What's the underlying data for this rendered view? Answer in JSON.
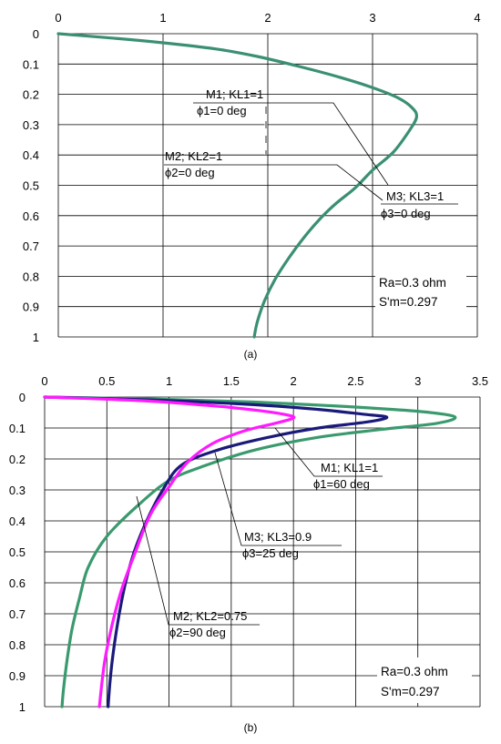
{
  "panels": [
    {
      "caption": "(a)",
      "info_lines": [
        "Ra=0.3 ohm",
        "S'm=0.297"
      ],
      "annotations": [
        {
          "line1": "M1;  KL1=1",
          "line2": "ϕ1=0 deg"
        },
        {
          "line1": "M2; KL2=1",
          "line2": "ϕ2=0 deg"
        },
        {
          "line1": "M3; KL3=1",
          "line2": "ϕ3=0 deg"
        }
      ]
    },
    {
      "caption": "(b)",
      "info_lines": [
        "Ra=0.3 ohm",
        "S'm=0.297"
      ],
      "annotations": [
        {
          "line1": "M1;  KL1=1",
          "line2": "ϕ1=60 deg"
        },
        {
          "line1": "M3; KL3=0.9",
          "line2": "ϕ3=25 deg"
        },
        {
          "line1": "M2; KL2=0.75",
          "line2": "ϕ2=90 deg"
        }
      ]
    }
  ],
  "chart_data": [
    {
      "type": "line",
      "title": "",
      "xlabel": "",
      "ylabel": "",
      "x_axis_position": "top",
      "y_axis_inverted": true,
      "xlim": [
        0,
        4
      ],
      "ylim": [
        0,
        1
      ],
      "x_ticks": [
        "0",
        "1",
        "2",
        "3",
        "4"
      ],
      "y_ticks": [
        "0",
        "0.1",
        "0.2",
        "0.3",
        "0.4",
        "0.5",
        "0.6",
        "0.7",
        "0.8",
        "0.9",
        "1"
      ],
      "grid": true,
      "colors": {
        "green": "#3a8f74"
      },
      "series": [
        {
          "color": "#3a8f74",
          "points": [
            [
              0,
              0
            ],
            [
              0.5,
              0.014
            ],
            [
              1.0,
              0.03
            ],
            [
              1.5,
              0.05
            ],
            [
              1.9,
              0.075
            ],
            [
              2.3,
              0.108
            ],
            [
              2.7,
              0.145
            ],
            [
              3.0,
              0.178
            ],
            [
              3.25,
              0.213
            ],
            [
              3.38,
              0.245
            ],
            [
              3.42,
              0.275
            ],
            [
              3.35,
              0.32
            ],
            [
              3.2,
              0.39
            ],
            [
              3.0,
              0.45
            ],
            [
              2.83,
              0.51
            ],
            [
              2.65,
              0.56
            ],
            [
              2.5,
              0.61
            ],
            [
              2.35,
              0.67
            ],
            [
              2.2,
              0.74
            ],
            [
              2.07,
              0.81
            ],
            [
              1.97,
              0.88
            ],
            [
              1.9,
              0.95
            ],
            [
              1.87,
              1.0
            ]
          ]
        }
      ]
    },
    {
      "type": "line",
      "title": "",
      "xlabel": "",
      "ylabel": "",
      "x_axis_position": "top",
      "y_axis_inverted": true,
      "xlim": [
        0,
        3.5
      ],
      "ylim": [
        0,
        1
      ],
      "x_ticks": [
        "0",
        "0.5",
        "1",
        "1.5",
        "2",
        "2.5",
        "3",
        "3.5"
      ],
      "y_ticks": [
        "0",
        "0.1",
        "0.2",
        "0.3",
        "0.4",
        "0.5",
        "0.6",
        "0.7",
        "0.8",
        "0.9",
        "1"
      ],
      "grid": true,
      "colors": {
        "green": "#3a9a6e",
        "navy": "#1a1a7a",
        "magenta": "#ff1aff"
      },
      "series": [
        {
          "color": "#3a9a6e",
          "points": [
            [
              0,
              0
            ],
            [
              0.8,
              0.006
            ],
            [
              1.6,
              0.015
            ],
            [
              2.3,
              0.028
            ],
            [
              2.8,
              0.04
            ],
            [
              3.1,
              0.05
            ],
            [
              3.3,
              0.065
            ],
            [
              3.15,
              0.085
            ],
            [
              2.7,
              0.105
            ],
            [
              2.2,
              0.13
            ],
            [
              1.7,
              0.17
            ],
            [
              1.3,
              0.22
            ],
            [
              1.0,
              0.27
            ],
            [
              0.75,
              0.35
            ],
            [
              0.5,
              0.45
            ],
            [
              0.35,
              0.55
            ],
            [
              0.28,
              0.65
            ],
            [
              0.22,
              0.75
            ],
            [
              0.18,
              0.85
            ],
            [
              0.15,
              0.95
            ],
            [
              0.14,
              1.0
            ]
          ]
        },
        {
          "color": "#1a1a7a",
          "points": [
            [
              0,
              0
            ],
            [
              0.9,
              0.01
            ],
            [
              1.7,
              0.025
            ],
            [
              2.2,
              0.04
            ],
            [
              2.55,
              0.055
            ],
            [
              2.75,
              0.065
            ],
            [
              2.6,
              0.08
            ],
            [
              2.2,
              0.1
            ],
            [
              1.8,
              0.13
            ],
            [
              1.4,
              0.17
            ],
            [
              1.1,
              0.22
            ],
            [
              0.95,
              0.3
            ],
            [
              0.82,
              0.4
            ],
            [
              0.72,
              0.5
            ],
            [
              0.65,
              0.6
            ],
            [
              0.6,
              0.7
            ],
            [
              0.56,
              0.8
            ],
            [
              0.53,
              0.9
            ],
            [
              0.51,
              1.0
            ]
          ]
        },
        {
          "color": "#ff1aff",
          "points": [
            [
              0,
              0
            ],
            [
              0.8,
              0.012
            ],
            [
              1.4,
              0.03
            ],
            [
              1.75,
              0.045
            ],
            [
              1.95,
              0.058
            ],
            [
              2.0,
              0.068
            ],
            [
              1.85,
              0.085
            ],
            [
              1.6,
              0.11
            ],
            [
              1.35,
              0.15
            ],
            [
              1.15,
              0.21
            ],
            [
              1.0,
              0.29
            ],
            [
              0.85,
              0.38
            ],
            [
              0.73,
              0.5
            ],
            [
              0.62,
              0.62
            ],
            [
              0.54,
              0.74
            ],
            [
              0.48,
              0.86
            ],
            [
              0.44,
              1.0
            ]
          ]
        }
      ]
    }
  ]
}
